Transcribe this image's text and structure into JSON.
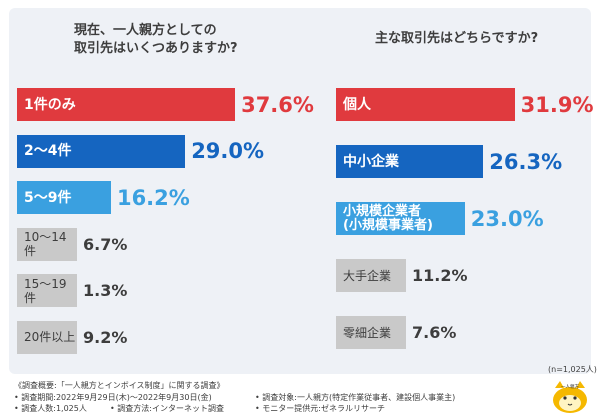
{
  "chart_data": [
    {
      "type": "bar",
      "title": "現在、一人親方としての\n取引先はいくつありますか?",
      "categories": [
        "1件のみ",
        "2～4件",
        "5～9件",
        "10～14件",
        "15～19件",
        "20件以上"
      ],
      "values": [
        37.6,
        29.0,
        16.2,
        6.7,
        1.3,
        9.2
      ],
      "value_labels": [
        "37.6%",
        "29.0%",
        "16.2%",
        "6.7%",
        "1.3%",
        "9.2%"
      ],
      "colors": [
        "#e03a3e",
        "#1565c0",
        "#3aa0e0",
        "#c9c9c9",
        "#c9c9c9",
        "#c9c9c9"
      ]
    },
    {
      "type": "bar",
      "title": "主な取引先はどちらですか?",
      "categories": [
        "個人",
        "中小企業",
        "小規模企業者\n(小規模事業者)",
        "大手企業",
        "零細企業"
      ],
      "values": [
        31.9,
        26.3,
        23.0,
        11.2,
        7.6
      ],
      "value_labels": [
        "31.9%",
        "26.3%",
        "23.0%",
        "11.2%",
        "7.6%"
      ],
      "colors": [
        "#e03a3e",
        "#1565c0",
        "#3aa0e0",
        "#c9c9c9",
        "#c9c9c9"
      ]
    }
  ],
  "sample_note": "(n=1,025人)",
  "footer": {
    "overview": "《調査概要:「一人親方とインボイス制度」に関する調査》",
    "period": "• 調査期間:2022年9月29日(木)～2022年9月30日(金)",
    "count": "• 調査人数:1,025人",
    "method": "• 調査方法:インターネット調査",
    "target": "• 調査対象:一人親方(特定作業従事者、建設個人事業主)",
    "provider": "• モニター提供元:ゼネラルリサーチ"
  },
  "mascot_label": "一人親方"
}
